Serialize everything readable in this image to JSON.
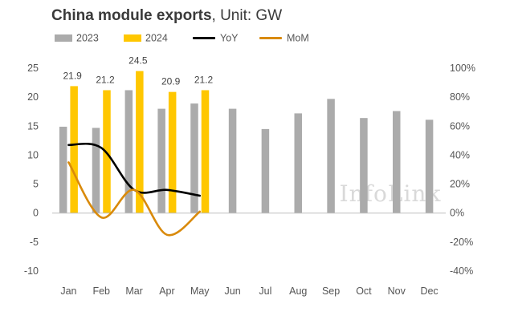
{
  "title": {
    "bold": "China module exports",
    "rest": ", Unit: GW"
  },
  "legend": [
    {
      "label": "2023",
      "kind": "bar",
      "color": "#ababab"
    },
    {
      "label": "2024",
      "kind": "bar",
      "color": "#ffc700"
    },
    {
      "label": "YoY",
      "kind": "line",
      "color": "#000000"
    },
    {
      "label": "MoM",
      "kind": "line",
      "color": "#d98a0b"
    }
  ],
  "watermark": "InfoLink",
  "chart_data": {
    "type": "bar",
    "categories": [
      "Jan",
      "Feb",
      "Mar",
      "Apr",
      "May",
      "Jun",
      "Jul",
      "Aug",
      "Sep",
      "Oct",
      "Nov",
      "Dec"
    ],
    "series": [
      {
        "name": "2023",
        "kind": "bar",
        "axis": "left",
        "color": "#ababab",
        "values": [
          14.9,
          14.7,
          21.2,
          18.0,
          18.9,
          18.0,
          14.5,
          17.2,
          19.7,
          16.4,
          17.6,
          16.1
        ]
      },
      {
        "name": "2024",
        "kind": "bar",
        "axis": "left",
        "color": "#ffc700",
        "values": [
          21.9,
          21.2,
          24.5,
          20.9,
          21.2,
          null,
          null,
          null,
          null,
          null,
          null,
          null
        ],
        "data_labels": [
          "21.9",
          "21.2",
          "24.5",
          "20.9",
          "21.2"
        ]
      },
      {
        "name": "YoY",
        "kind": "line",
        "axis": "right",
        "color": "#000000",
        "values": [
          47,
          45,
          16,
          16,
          12,
          null,
          null,
          null,
          null,
          null,
          null,
          null
        ]
      },
      {
        "name": "MoM",
        "kind": "line",
        "axis": "right",
        "color": "#d98a0b",
        "values": [
          35,
          -3,
          16,
          -15,
          1,
          null,
          null,
          null,
          null,
          null,
          null,
          null
        ]
      }
    ],
    "left_axis": {
      "min": -10,
      "max": 25,
      "step": 5,
      "ticks": [
        "-10",
        "-5",
        "0",
        "5",
        "10",
        "15",
        "20",
        "25"
      ]
    },
    "right_axis": {
      "min": -40,
      "max": 100,
      "step": 20,
      "ticks": [
        "-40%",
        "-20%",
        "0%",
        "20%",
        "40%",
        "60%",
        "80%",
        "100%"
      ]
    },
    "grid": false,
    "legend_position": "top-left"
  }
}
